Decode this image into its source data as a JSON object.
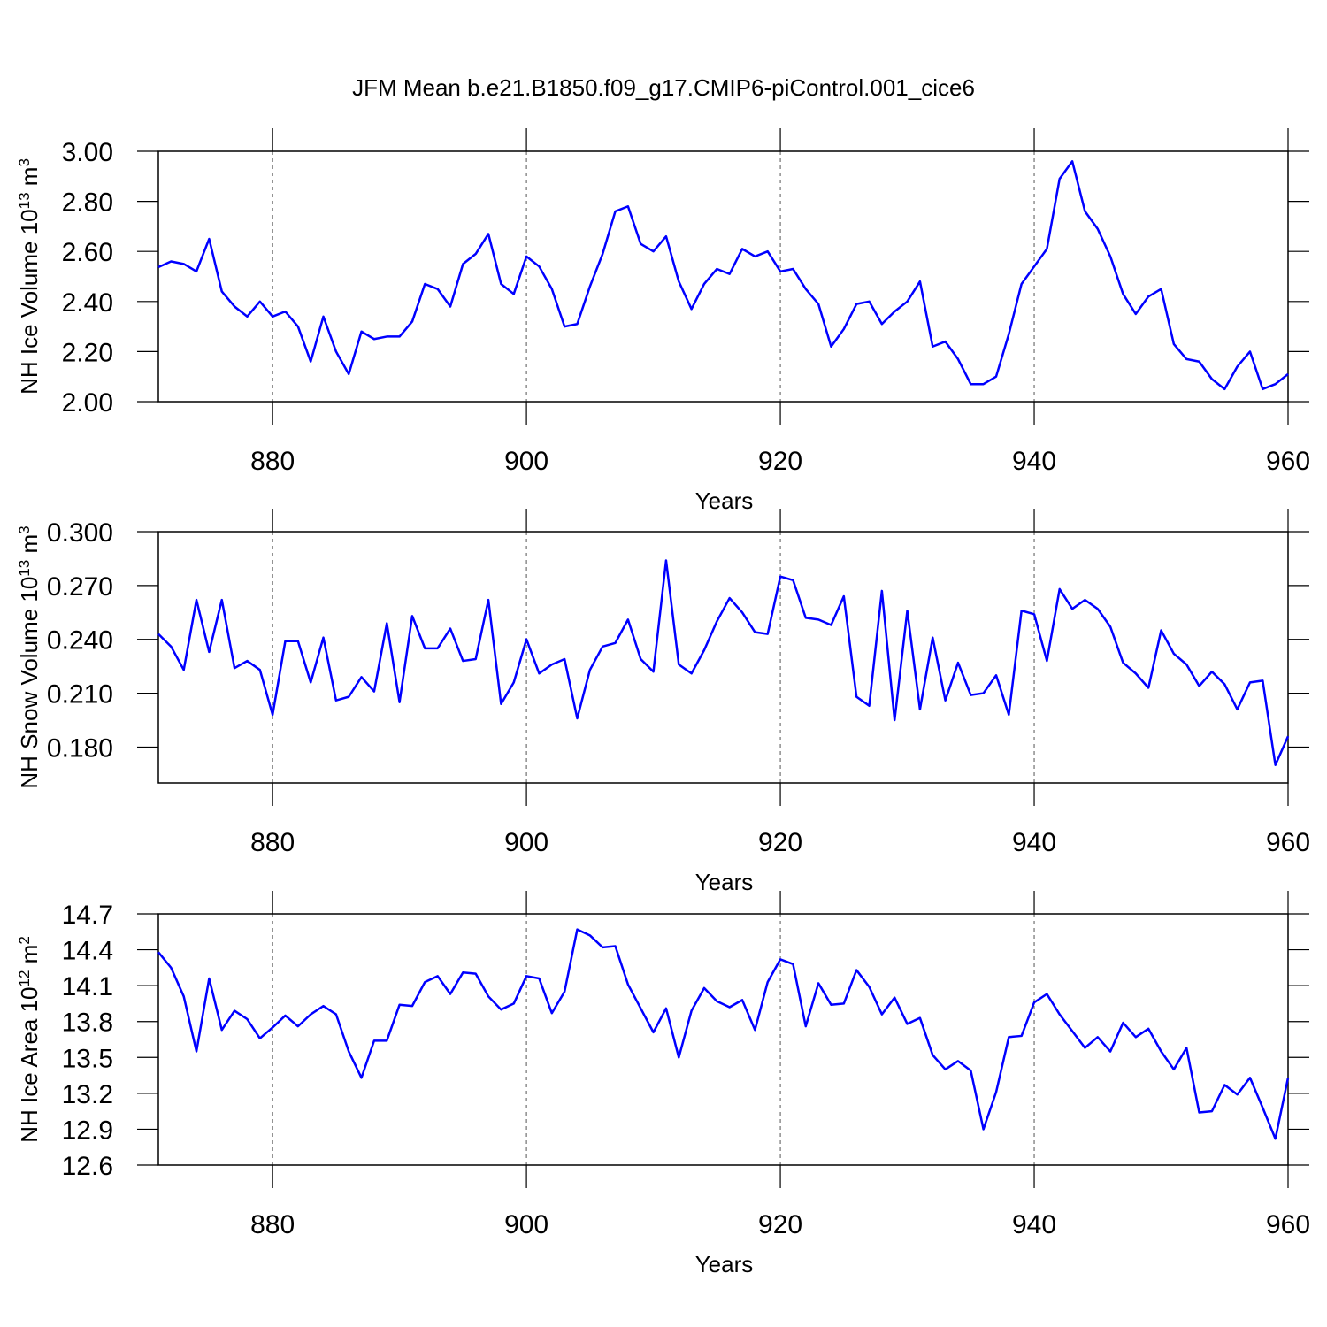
{
  "title": "JFM Mean b.e21.B1850.f09_g17.CMIP6-piControl.001_cice6",
  "chart_data": [
    {
      "type": "line",
      "xlabel": "Years",
      "ylabel": [
        "NH Ice Volume 10",
        "13",
        " m",
        "3"
      ],
      "x": [
        871,
        872,
        873,
        874,
        875,
        876,
        877,
        878,
        879,
        880,
        881,
        882,
        883,
        884,
        885,
        886,
        887,
        888,
        889,
        890,
        891,
        892,
        893,
        894,
        895,
        896,
        897,
        898,
        899,
        900,
        901,
        902,
        903,
        904,
        905,
        906,
        907,
        908,
        909,
        910,
        911,
        912,
        913,
        914,
        915,
        916,
        917,
        918,
        919,
        920,
        921,
        922,
        923,
        924,
        925,
        926,
        927,
        928,
        929,
        930,
        931,
        932,
        933,
        934,
        935,
        936,
        937,
        938,
        939,
        940,
        941,
        942,
        943,
        944,
        945,
        946,
        947,
        948,
        949,
        950,
        951,
        952,
        953,
        954,
        955,
        956,
        957,
        958,
        959,
        960
      ],
      "values": [
        2.537,
        2.56,
        2.55,
        2.52,
        2.65,
        2.44,
        2.38,
        2.34,
        2.4,
        2.34,
        2.36,
        2.3,
        2.16,
        2.34,
        2.2,
        2.11,
        2.28,
        2.25,
        2.26,
        2.26,
        2.32,
        2.47,
        2.45,
        2.38,
        2.55,
        2.59,
        2.67,
        2.47,
        2.43,
        2.58,
        2.54,
        2.45,
        2.3,
        2.31,
        2.46,
        2.59,
        2.76,
        2.78,
        2.63,
        2.6,
        2.66,
        2.48,
        2.37,
        2.47,
        2.53,
        2.51,
        2.61,
        2.58,
        2.6,
        2.52,
        2.53,
        2.45,
        2.39,
        2.22,
        2.29,
        2.39,
        2.4,
        2.31,
        2.36,
        2.4,
        2.48,
        2.22,
        2.24,
        2.17,
        2.07,
        2.07,
        2.1,
        2.27,
        2.47,
        2.54,
        2.61,
        2.89,
        2.96,
        2.76,
        2.69,
        2.58,
        2.43,
        2.35,
        2.42,
        2.45,
        2.23,
        2.17,
        2.16,
        2.09,
        2.05,
        2.14,
        2.2,
        2.05,
        2.07,
        2.11
      ],
      "color": "#0000ff",
      "xlim": [
        871,
        960
      ],
      "xticks": [
        880,
        900,
        920,
        940,
        960
      ],
      "grid": true,
      "ylim": [
        2.0,
        3.0
      ],
      "yticks": [
        {
          "value": 2.0,
          "label": "2.00"
        },
        {
          "value": 2.2,
          "label": "2.20"
        },
        {
          "value": 2.4,
          "label": "2.40"
        },
        {
          "value": 2.6,
          "label": "2.60"
        },
        {
          "value": 2.8,
          "label": "2.80"
        },
        {
          "value": 3.0,
          "label": "3.00"
        }
      ]
    },
    {
      "type": "line",
      "xlabel": "Years",
      "ylabel": [
        "NH Snow Volume 10",
        "13",
        " m",
        "3"
      ],
      "x": [
        871,
        872,
        873,
        874,
        875,
        876,
        877,
        878,
        879,
        880,
        881,
        882,
        883,
        884,
        885,
        886,
        887,
        888,
        889,
        890,
        891,
        892,
        893,
        894,
        895,
        896,
        897,
        898,
        899,
        900,
        901,
        902,
        903,
        904,
        905,
        906,
        907,
        908,
        909,
        910,
        911,
        912,
        913,
        914,
        915,
        916,
        917,
        918,
        919,
        920,
        921,
        922,
        923,
        924,
        925,
        926,
        927,
        928,
        929,
        930,
        931,
        932,
        933,
        934,
        935,
        936,
        937,
        938,
        939,
        940,
        941,
        942,
        943,
        944,
        945,
        946,
        947,
        948,
        949,
        950,
        951,
        952,
        953,
        954,
        955,
        956,
        957,
        958,
        959,
        960
      ],
      "values": [
        0.243,
        0.236,
        0.223,
        0.262,
        0.233,
        0.262,
        0.224,
        0.228,
        0.223,
        0.198,
        0.239,
        0.239,
        0.216,
        0.241,
        0.206,
        0.208,
        0.219,
        0.211,
        0.249,
        0.205,
        0.253,
        0.235,
        0.235,
        0.246,
        0.228,
        0.229,
        0.262,
        0.204,
        0.216,
        0.24,
        0.221,
        0.226,
        0.229,
        0.196,
        0.223,
        0.236,
        0.238,
        0.251,
        0.229,
        0.222,
        0.284,
        0.226,
        0.221,
        0.234,
        0.25,
        0.263,
        0.255,
        0.244,
        0.243,
        0.275,
        0.273,
        0.252,
        0.251,
        0.248,
        0.264,
        0.208,
        0.203,
        0.267,
        0.195,
        0.256,
        0.201,
        0.241,
        0.206,
        0.227,
        0.209,
        0.21,
        0.22,
        0.198,
        0.256,
        0.254,
        0.228,
        0.268,
        0.257,
        0.262,
        0.257,
        0.247,
        0.227,
        0.221,
        0.213,
        0.245,
        0.232,
        0.226,
        0.214,
        0.222,
        0.215,
        0.201,
        0.216,
        0.217,
        0.17,
        0.186
      ],
      "color": "#0000ff",
      "xlim": [
        871,
        960
      ],
      "xticks": [
        880,
        900,
        920,
        940,
        960
      ],
      "grid": true,
      "ylim": [
        0.16,
        0.3
      ],
      "yticks": [
        {
          "value": 0.18,
          "label": "0.180"
        },
        {
          "value": 0.21,
          "label": "0.210"
        },
        {
          "value": 0.24,
          "label": "0.240"
        },
        {
          "value": 0.27,
          "label": "0.270"
        },
        {
          "value": 0.3,
          "label": "0.300"
        }
      ]
    },
    {
      "type": "line",
      "xlabel": "Years",
      "ylabel": [
        "NH Ice Area 10",
        "12",
        " m",
        "2"
      ],
      "x": [
        871,
        872,
        873,
        874,
        875,
        876,
        877,
        878,
        879,
        880,
        881,
        882,
        883,
        884,
        885,
        886,
        887,
        888,
        889,
        890,
        891,
        892,
        893,
        894,
        895,
        896,
        897,
        898,
        899,
        900,
        901,
        902,
        903,
        904,
        905,
        906,
        907,
        908,
        909,
        910,
        911,
        912,
        913,
        914,
        915,
        916,
        917,
        918,
        919,
        920,
        921,
        922,
        923,
        924,
        925,
        926,
        927,
        928,
        929,
        930,
        931,
        932,
        933,
        934,
        935,
        936,
        937,
        938,
        939,
        940,
        941,
        942,
        943,
        944,
        945,
        946,
        947,
        948,
        949,
        950,
        951,
        952,
        953,
        954,
        955,
        956,
        957,
        958,
        959,
        960
      ],
      "values": [
        14.38,
        14.25,
        14.01,
        13.55,
        14.16,
        13.73,
        13.89,
        13.82,
        13.66,
        13.75,
        13.85,
        13.76,
        13.86,
        13.93,
        13.86,
        13.55,
        13.33,
        13.64,
        13.64,
        13.94,
        13.93,
        14.13,
        14.18,
        14.03,
        14.21,
        14.2,
        14.01,
        13.9,
        13.95,
        14.18,
        14.16,
        13.87,
        14.05,
        14.57,
        14.52,
        14.42,
        14.43,
        14.11,
        13.91,
        13.71,
        13.91,
        13.5,
        13.89,
        14.08,
        13.97,
        13.92,
        13.98,
        13.73,
        14.13,
        14.32,
        14.28,
        13.76,
        14.12,
        13.94,
        13.95,
        14.23,
        14.09,
        13.86,
        14.0,
        13.78,
        13.83,
        13.52,
        13.4,
        13.47,
        13.39,
        12.9,
        13.21,
        13.67,
        13.68,
        13.96,
        14.03,
        13.86,
        13.72,
        13.58,
        13.67,
        13.55,
        13.79,
        13.67,
        13.74,
        13.55,
        13.4,
        13.58,
        13.04,
        13.05,
        13.27,
        13.19,
        13.33,
        13.08,
        12.82,
        13.33
      ],
      "color": "#0000ff",
      "xlim": [
        871,
        960
      ],
      "xticks": [
        880,
        900,
        920,
        940,
        960
      ],
      "grid": true,
      "ylim": [
        12.6,
        14.7
      ],
      "yticks": [
        12.6,
        12.9,
        13.2,
        13.5,
        13.8,
        14.1,
        14.4,
        14.7
      ]
    }
  ]
}
